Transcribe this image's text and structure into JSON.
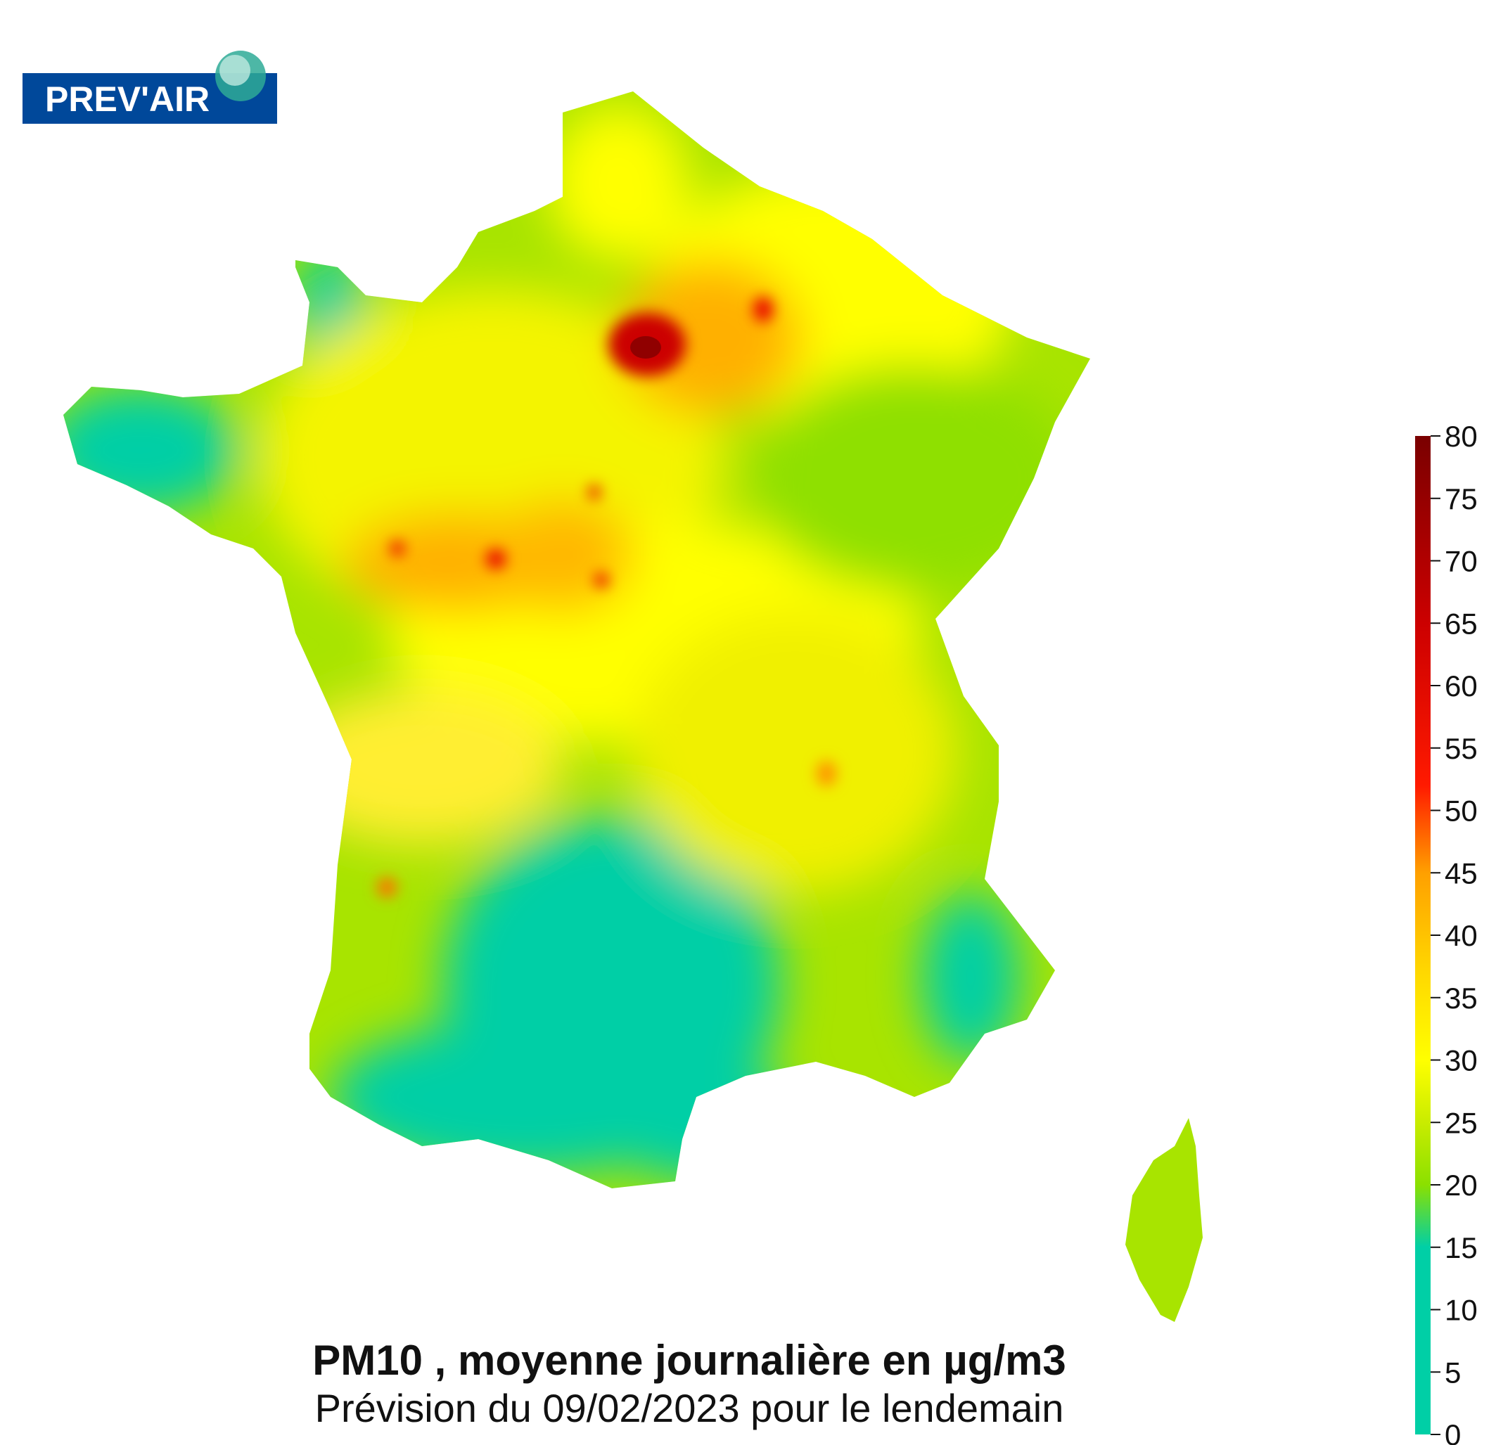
{
  "logo": {
    "text": "PREV'AIR",
    "brand_color": "#00489a"
  },
  "title": "PM10 , moyenne journalière en µg/m3",
  "subtitle": "Prévision du 09/02/2023 pour le lendemain",
  "legend": {
    "min": 0,
    "max": 80,
    "ticks": [
      "0",
      "5",
      "10",
      "15",
      "20",
      "25",
      "30",
      "35",
      "40",
      "45",
      "50",
      "55",
      "60",
      "65",
      "70",
      "75",
      "80"
    ],
    "stops": [
      {
        "v": 0,
        "c": "#00cfa6"
      },
      {
        "v": 15,
        "c": "#00cfa6"
      },
      {
        "v": 20,
        "c": "#8be000"
      },
      {
        "v": 25,
        "c": "#c9ec00"
      },
      {
        "v": 30,
        "c": "#ffff00"
      },
      {
        "v": 37,
        "c": "#ffd800"
      },
      {
        "v": 45,
        "c": "#ffa000"
      },
      {
        "v": 52,
        "c": "#ff1a00"
      },
      {
        "v": 65,
        "c": "#cc0000"
      },
      {
        "v": 80,
        "c": "#7a0000"
      }
    ]
  }
}
